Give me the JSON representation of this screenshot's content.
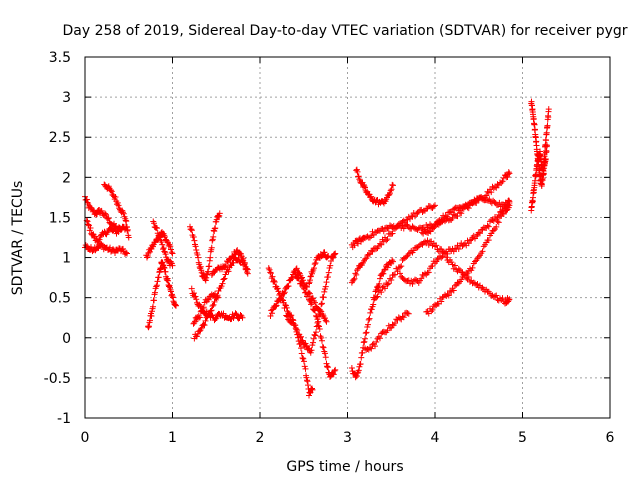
{
  "chart_data": {
    "type": "scatter",
    "title": "Day 258 of 2019, Sidereal Day-to-day VTEC variation (SDTVAR) for receiver pygr",
    "xlabel": "GPS time / hours",
    "ylabel": "SDTVAR / TECUs",
    "xlim": [
      0,
      6
    ],
    "ylim": [
      -1,
      3.5
    ],
    "xticks": [
      0,
      1,
      2,
      3,
      4,
      5,
      6
    ],
    "xtick_labels": [
      "0",
      "1",
      "2",
      "3",
      "4",
      "5",
      "6"
    ],
    "yticks": [
      -1,
      -0.5,
      0,
      0.5,
      1,
      1.5,
      2,
      2.5,
      3,
      3.5
    ],
    "ytick_labels": [
      "-1",
      "-0.5",
      "0",
      "0.5",
      "1",
      "1.5",
      "2",
      "2.5",
      "3",
      "3.5"
    ],
    "grid": true,
    "marker": "+",
    "color": "#ff0000",
    "tracks": [
      [
        [
          0.0,
          1.75
        ],
        [
          0.05,
          1.62
        ],
        [
          0.12,
          1.55
        ],
        [
          0.18,
          1.58
        ],
        [
          0.25,
          1.5
        ],
        [
          0.32,
          1.4
        ],
        [
          0.4,
          1.35
        ],
        [
          0.48,
          1.38
        ]
      ],
      [
        [
          0.0,
          1.15
        ],
        [
          0.06,
          1.1
        ],
        [
          0.12,
          1.12
        ],
        [
          0.18,
          1.15
        ],
        [
          0.24,
          1.12
        ],
        [
          0.32,
          1.08
        ],
        [
          0.4,
          1.1
        ],
        [
          0.48,
          1.05
        ]
      ],
      [
        [
          0.02,
          1.45
        ],
        [
          0.08,
          1.3
        ],
        [
          0.14,
          1.2
        ],
        [
          0.2,
          1.28
        ],
        [
          0.28,
          1.35
        ],
        [
          0.36,
          1.32
        ],
        [
          0.44,
          1.38
        ]
      ],
      [
        [
          0.22,
          1.92
        ],
        [
          0.28,
          1.85
        ],
        [
          0.34,
          1.75
        ],
        [
          0.4,
          1.62
        ],
        [
          0.46,
          1.5
        ],
        [
          0.5,
          1.25
        ]
      ],
      [
        [
          0.7,
          1.0
        ],
        [
          0.76,
          1.12
        ],
        [
          0.82,
          1.22
        ],
        [
          0.88,
          1.32
        ],
        [
          0.94,
          1.2
        ],
        [
          1.0,
          1.05
        ]
      ],
      [
        [
          0.72,
          0.12
        ],
        [
          0.76,
          0.3
        ],
        [
          0.8,
          0.55
        ],
        [
          0.85,
          0.8
        ],
        [
          0.88,
          0.95
        ],
        [
          0.92,
          0.8
        ],
        [
          0.96,
          0.65
        ],
        [
          1.0,
          0.5
        ],
        [
          1.04,
          0.4
        ]
      ],
      [
        [
          0.78,
          1.45
        ],
        [
          0.84,
          1.3
        ],
        [
          0.9,
          1.1
        ],
        [
          0.95,
          0.95
        ],
        [
          1.0,
          0.9
        ]
      ],
      [
        [
          1.2,
          1.4
        ],
        [
          1.25,
          1.2
        ],
        [
          1.3,
          0.95
        ],
        [
          1.34,
          0.8
        ],
        [
          1.38,
          0.7
        ],
        [
          1.42,
          0.9
        ],
        [
          1.46,
          1.25
        ],
        [
          1.5,
          1.45
        ],
        [
          1.54,
          1.55
        ]
      ],
      [
        [
          1.22,
          0.6
        ],
        [
          1.28,
          0.45
        ],
        [
          1.34,
          0.35
        ],
        [
          1.4,
          0.3
        ],
        [
          1.48,
          0.25
        ],
        [
          1.56,
          0.3
        ],
        [
          1.64,
          0.25
        ],
        [
          1.72,
          0.28
        ],
        [
          1.8,
          0.25
        ]
      ],
      [
        [
          1.25,
          0.0
        ],
        [
          1.32,
          0.1
        ],
        [
          1.4,
          0.25
        ],
        [
          1.48,
          0.45
        ],
        [
          1.56,
          0.65
        ],
        [
          1.64,
          0.85
        ],
        [
          1.72,
          1.0
        ],
        [
          1.8,
          0.95
        ],
        [
          1.86,
          0.85
        ]
      ],
      [
        [
          1.45,
          0.8
        ],
        [
          1.52,
          0.85
        ],
        [
          1.6,
          0.9
        ],
        [
          1.68,
          1.0
        ],
        [
          1.74,
          1.1
        ],
        [
          1.8,
          1.0
        ],
        [
          1.86,
          0.8
        ]
      ],
      [
        [
          1.24,
          0.2
        ],
        [
          1.3,
          0.25
        ],
        [
          1.38,
          0.45
        ],
        [
          1.46,
          0.55
        ],
        [
          1.52,
          0.5
        ]
      ],
      [
        [
          2.1,
          0.85
        ],
        [
          2.16,
          0.7
        ],
        [
          2.22,
          0.55
        ],
        [
          2.28,
          0.4
        ],
        [
          2.34,
          0.3
        ],
        [
          2.4,
          0.15
        ],
        [
          2.46,
          -0.1
        ],
        [
          2.52,
          -0.4
        ],
        [
          2.56,
          -0.7
        ],
        [
          2.6,
          -0.65
        ]
      ],
      [
        [
          2.12,
          0.3
        ],
        [
          2.18,
          0.4
        ],
        [
          2.24,
          0.5
        ],
        [
          2.3,
          0.6
        ],
        [
          2.36,
          0.75
        ],
        [
          2.42,
          0.85
        ],
        [
          2.48,
          0.75
        ],
        [
          2.56,
          0.55
        ],
        [
          2.64,
          0.4
        ],
        [
          2.7,
          0.3
        ],
        [
          2.76,
          0.2
        ]
      ],
      [
        [
          2.3,
          0.25
        ],
        [
          2.38,
          0.2
        ],
        [
          2.46,
          0.0
        ],
        [
          2.52,
          -0.1
        ],
        [
          2.58,
          -0.2
        ],
        [
          2.64,
          0.1
        ],
        [
          2.7,
          0.4
        ],
        [
          2.76,
          0.7
        ],
        [
          2.82,
          1.0
        ],
        [
          2.86,
          1.05
        ]
      ],
      [
        [
          2.4,
          0.8
        ],
        [
          2.48,
          0.65
        ],
        [
          2.56,
          0.5
        ],
        [
          2.64,
          0.3
        ],
        [
          2.7,
          0.0
        ],
        [
          2.76,
          -0.3
        ],
        [
          2.8,
          -0.5
        ],
        [
          2.86,
          -0.4
        ]
      ],
      [
        [
          2.56,
          0.7
        ],
        [
          2.6,
          0.85
        ],
        [
          2.66,
          1.0
        ],
        [
          2.72,
          1.05
        ],
        [
          2.78,
          1.02
        ]
      ],
      [
        [
          3.05,
          -0.4
        ],
        [
          3.1,
          -0.5
        ],
        [
          3.15,
          -0.3
        ],
        [
          3.2,
          0.0
        ],
        [
          3.26,
          0.3
        ],
        [
          3.32,
          0.55
        ],
        [
          3.38,
          0.75
        ],
        [
          3.45,
          0.9
        ],
        [
          3.52,
          0.95
        ]
      ],
      [
        [
          3.05,
          0.7
        ],
        [
          3.12,
          0.85
        ],
        [
          3.2,
          1.0
        ],
        [
          3.3,
          1.1
        ],
        [
          3.4,
          1.2
        ],
        [
          3.5,
          1.3
        ],
        [
          3.6,
          1.4
        ],
        [
          3.7,
          1.5
        ],
        [
          3.8,
          1.55
        ],
        [
          3.9,
          1.6
        ],
        [
          4.0,
          1.65
        ]
      ],
      [
        [
          3.05,
          1.15
        ],
        [
          3.12,
          1.2
        ],
        [
          3.2,
          1.25
        ],
        [
          3.3,
          1.3
        ],
        [
          3.4,
          1.35
        ],
        [
          3.5,
          1.38
        ],
        [
          3.6,
          1.4
        ],
        [
          3.7,
          1.38
        ],
        [
          3.8,
          1.35
        ],
        [
          3.9,
          1.38
        ],
        [
          4.0,
          1.4
        ],
        [
          4.1,
          1.45
        ],
        [
          4.2,
          1.5
        ],
        [
          4.3,
          1.58
        ],
        [
          4.4,
          1.65
        ],
        [
          4.5,
          1.72
        ],
        [
          4.6,
          1.8
        ],
        [
          4.7,
          1.9
        ],
        [
          4.8,
          2.0
        ],
        [
          4.85,
          2.05
        ]
      ],
      [
        [
          3.1,
          2.1
        ],
        [
          3.15,
          1.95
        ],
        [
          3.2,
          1.85
        ],
        [
          3.26,
          1.75
        ],
        [
          3.32,
          1.7
        ],
        [
          3.4,
          1.68
        ],
        [
          3.46,
          1.75
        ],
        [
          3.52,
          1.9
        ]
      ],
      [
        [
          3.2,
          -0.15
        ],
        [
          3.3,
          -0.1
        ],
        [
          3.4,
          0.05
        ],
        [
          3.5,
          0.15
        ],
        [
          3.6,
          0.25
        ],
        [
          3.7,
          0.3
        ]
      ],
      [
        [
          3.6,
          0.8
        ],
        [
          3.7,
          0.7
        ],
        [
          3.8,
          0.7
        ],
        [
          3.9,
          0.8
        ],
        [
          4.0,
          0.95
        ],
        [
          4.1,
          1.05
        ],
        [
          4.2,
          1.1
        ],
        [
          4.3,
          1.15
        ],
        [
          4.4,
          1.2
        ],
        [
          4.5,
          1.3
        ],
        [
          4.6,
          1.4
        ],
        [
          4.7,
          1.5
        ],
        [
          4.8,
          1.6
        ],
        [
          4.85,
          1.65
        ]
      ],
      [
        [
          3.3,
          0.5
        ],
        [
          3.4,
          0.6
        ],
        [
          3.5,
          0.75
        ],
        [
          3.6,
          0.9
        ],
        [
          3.7,
          1.05
        ],
        [
          3.8,
          1.15
        ],
        [
          3.9,
          1.2
        ],
        [
          4.0,
          1.15
        ],
        [
          4.1,
          1.05
        ],
        [
          4.2,
          0.9
        ],
        [
          4.3,
          0.8
        ],
        [
          4.4,
          0.72
        ],
        [
          4.5,
          0.65
        ],
        [
          4.6,
          0.58
        ],
        [
          4.7,
          0.5
        ],
        [
          4.8,
          0.45
        ],
        [
          4.85,
          0.48
        ]
      ],
      [
        [
          3.9,
          0.3
        ],
        [
          4.0,
          0.4
        ],
        [
          4.1,
          0.5
        ],
        [
          4.2,
          0.6
        ],
        [
          4.3,
          0.72
        ],
        [
          4.4,
          0.85
        ],
        [
          4.5,
          1.0
        ],
        [
          4.6,
          1.2
        ],
        [
          4.7,
          1.4
        ],
        [
          4.8,
          1.6
        ],
        [
          4.85,
          1.7
        ]
      ],
      [
        [
          3.85,
          1.3
        ],
        [
          3.95,
          1.35
        ],
        [
          4.05,
          1.45
        ],
        [
          4.15,
          1.55
        ],
        [
          4.25,
          1.6
        ],
        [
          4.35,
          1.65
        ],
        [
          4.45,
          1.7
        ],
        [
          4.55,
          1.75
        ],
        [
          4.65,
          1.7
        ],
        [
          4.75,
          1.65
        ],
        [
          4.85,
          1.68
        ]
      ],
      [
        [
          5.1,
          2.95
        ],
        [
          5.12,
          2.8
        ],
        [
          5.14,
          2.6
        ],
        [
          5.16,
          2.4
        ],
        [
          5.18,
          2.2
        ],
        [
          5.2,
          2.0
        ],
        [
          5.22,
          1.9
        ],
        [
          5.24,
          2.1
        ],
        [
          5.26,
          2.4
        ],
        [
          5.28,
          2.6
        ],
        [
          5.3,
          2.85
        ]
      ],
      [
        [
          5.1,
          1.6
        ],
        [
          5.12,
          1.75
        ],
        [
          5.14,
          1.95
        ],
        [
          5.16,
          2.1
        ],
        [
          5.18,
          2.25
        ],
        [
          5.2,
          2.3
        ],
        [
          5.22,
          2.15
        ],
        [
          5.24,
          2.05
        ],
        [
          5.26,
          2.2
        ],
        [
          5.28,
          2.4
        ]
      ]
    ]
  }
}
